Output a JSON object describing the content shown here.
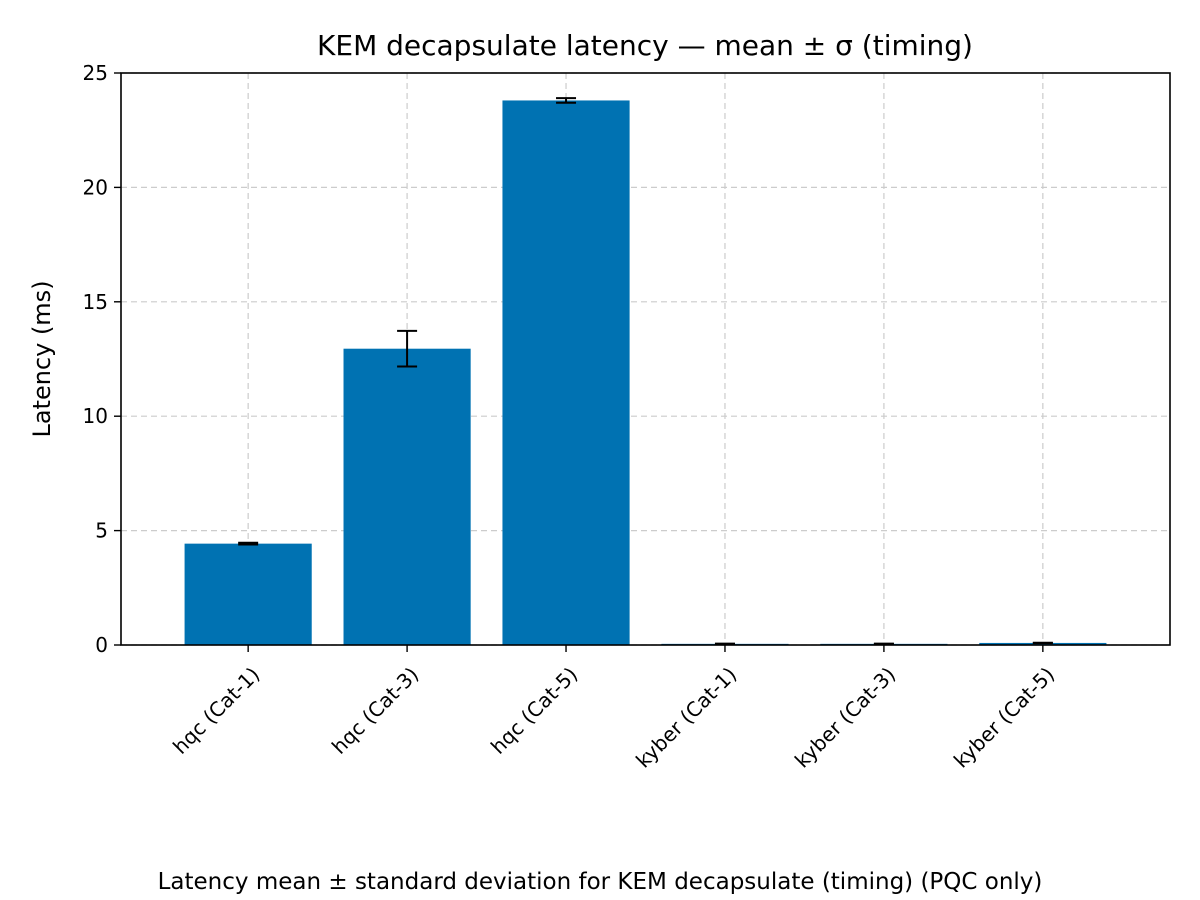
{
  "chart_data": {
    "type": "bar",
    "title": "KEM decapsulate latency — mean ± σ (timing)",
    "xlabel": "",
    "ylabel": "Latency (ms)",
    "caption": "Latency mean ± standard deviation for KEM decapsulate (timing) (PQC only)",
    "categories": [
      "hqc (Cat-1)",
      "hqc (Cat-3)",
      "hqc (Cat-5)",
      "kyber (Cat-1)",
      "kyber (Cat-3)",
      "kyber (Cat-5)"
    ],
    "values": [
      4.43,
      12.95,
      23.8,
      0.05,
      0.05,
      0.09
    ],
    "errors": [
      0.04,
      0.78,
      0.1,
      0.01,
      0.01,
      0.01
    ],
    "ylim": [
      0,
      25
    ],
    "yticks": [
      0,
      5,
      10,
      15,
      20,
      25
    ],
    "grid": true,
    "bar_color": "#0072b2",
    "error_color": "#000000",
    "grid_color": "#cccccc"
  }
}
